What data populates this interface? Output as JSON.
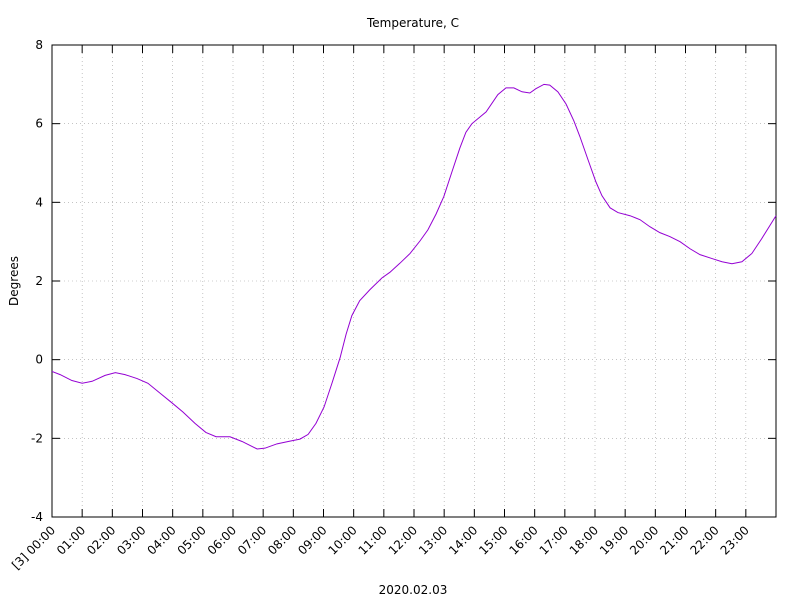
{
  "chart_data": {
    "type": "line",
    "title": "Temperature, C",
    "xlabel": "2020.02.03",
    "ylabel": "Degrees",
    "x": [
      0,
      0.27,
      0.66,
      1.0,
      1.33,
      1.76,
      2.1,
      2.42,
      2.82,
      3.18,
      3.58,
      3.98,
      4.34,
      4.74,
      5.1,
      5.44,
      5.9,
      6.3,
      6.8,
      7.06,
      7.46,
      7.89,
      8.22,
      8.49,
      8.75,
      9.02,
      9.28,
      9.55,
      9.75,
      9.94,
      10.2,
      10.54,
      10.94,
      11.2,
      11.53,
      11.87,
      12.2,
      12.46,
      12.73,
      12.99,
      13.26,
      13.52,
      13.72,
      13.92,
      14.39,
      14.78,
      15.05,
      15.31,
      15.58,
      15.84,
      16.04,
      16.31,
      16.5,
      16.77,
      17.04,
      17.3,
      17.5,
      17.77,
      18.03,
      18.23,
      18.5,
      18.76,
      19.16,
      19.49,
      19.82,
      20.15,
      20.48,
      20.82,
      21.15,
      21.48,
      21.88,
      22.21,
      22.54,
      22.87,
      23.2,
      23.53,
      24.0
    ],
    "series": [
      {
        "name": "Temperature",
        "color": "#9400d3",
        "values": [
          -0.3,
          -0.38,
          -0.53,
          -0.6,
          -0.55,
          -0.4,
          -0.33,
          -0.38,
          -0.48,
          -0.6,
          -0.85,
          -1.1,
          -1.33,
          -1.62,
          -1.85,
          -1.96,
          -1.96,
          -2.08,
          -2.27,
          -2.25,
          -2.14,
          -2.07,
          -2.02,
          -1.9,
          -1.62,
          -1.2,
          -0.6,
          0.05,
          0.65,
          1.12,
          1.5,
          1.78,
          2.08,
          2.22,
          2.45,
          2.7,
          3.02,
          3.3,
          3.7,
          4.15,
          4.78,
          5.38,
          5.78,
          6.0,
          6.3,
          6.74,
          6.91,
          6.91,
          6.81,
          6.78,
          6.89,
          7.0,
          6.98,
          6.81,
          6.5,
          6.07,
          5.67,
          5.08,
          4.52,
          4.17,
          3.86,
          3.74,
          3.66,
          3.56,
          3.38,
          3.23,
          3.13,
          3.0,
          2.82,
          2.67,
          2.57,
          2.49,
          2.44,
          2.49,
          2.7,
          3.08,
          3.66
        ]
      }
    ],
    "xlim": [
      0,
      24
    ],
    "xticks": [
      {
        "value": 0,
        "label": "[3] 00:00"
      },
      {
        "value": 1,
        "label": "01:00"
      },
      {
        "value": 2,
        "label": "02:00"
      },
      {
        "value": 3,
        "label": "03:00"
      },
      {
        "value": 4,
        "label": "04:00"
      },
      {
        "value": 5,
        "label": "05:00"
      },
      {
        "value": 6,
        "label": "06:00"
      },
      {
        "value": 7,
        "label": "07:00"
      },
      {
        "value": 8,
        "label": "08:00"
      },
      {
        "value": 9,
        "label": "09:00"
      },
      {
        "value": 10,
        "label": "10:00"
      },
      {
        "value": 11,
        "label": "11:00"
      },
      {
        "value": 12,
        "label": "12:00"
      },
      {
        "value": 13,
        "label": "13:00"
      },
      {
        "value": 14,
        "label": "14:00"
      },
      {
        "value": 15,
        "label": "15:00"
      },
      {
        "value": 16,
        "label": "16:00"
      },
      {
        "value": 17,
        "label": "17:00"
      },
      {
        "value": 18,
        "label": "18:00"
      },
      {
        "value": 19,
        "label": "19:00"
      },
      {
        "value": 20,
        "label": "20:00"
      },
      {
        "value": 21,
        "label": "21:00"
      },
      {
        "value": 22,
        "label": "22:00"
      },
      {
        "value": 23,
        "label": "23:00"
      }
    ],
    "ylim": [
      -4,
      8
    ],
    "yticks": [
      -4,
      -2,
      0,
      2,
      4,
      6,
      8
    ],
    "grid": true
  }
}
